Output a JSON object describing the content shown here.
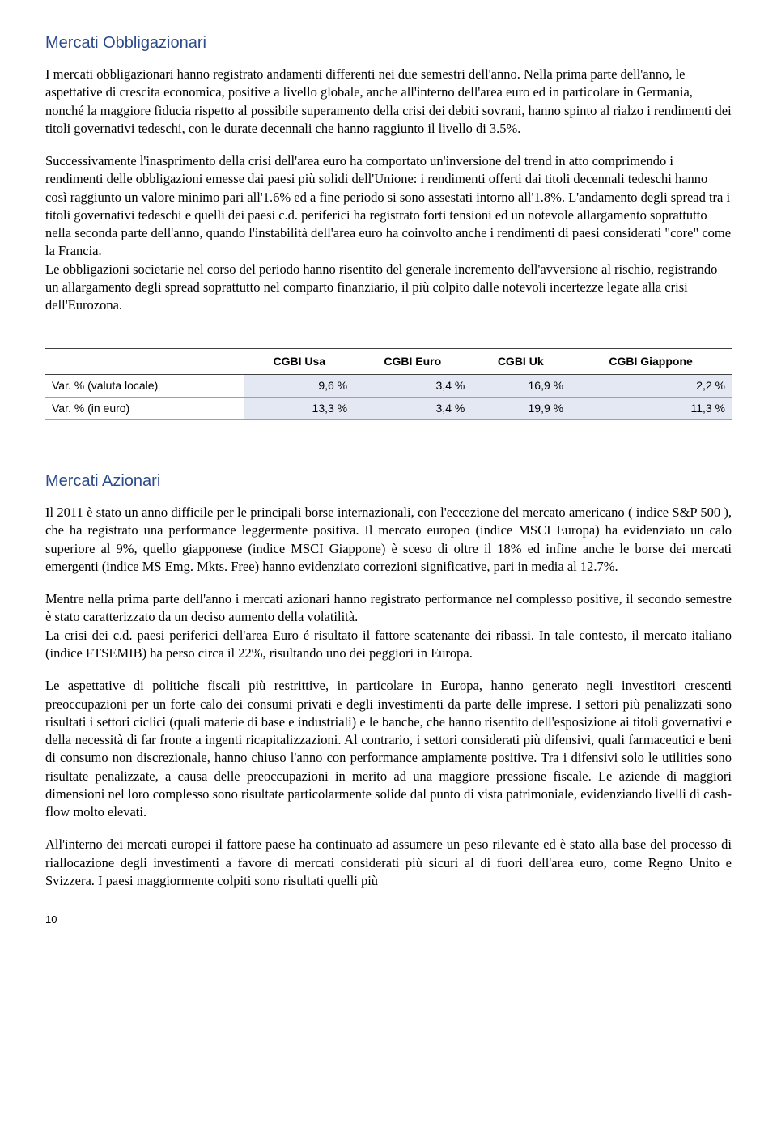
{
  "section1": {
    "heading": "Mercati Obbligazionari",
    "p1": "I mercati obbligazionari hanno registrato andamenti differenti nei due semestri dell'anno. Nella prima parte dell'anno, le aspettative di crescita  economica, positive a livello globale, anche all'interno dell'area euro ed in particolare in Germania, nonché la maggiore fiducia rispetto al possibile superamento della crisi dei debiti sovrani, hanno spinto al rialzo i rendimenti dei titoli governativi tedeschi, con le durate decennali che hanno raggiunto il livello di 3.5%.",
    "p2a": "Successivamente l'inasprimento della crisi dell'area euro ha comportato un'inversione del trend in atto comprimendo i rendimenti delle obbligazioni emesse dai paesi più solidi dell'Unione: i rendimenti offerti dai titoli decennali tedeschi hanno così raggiunto un valore minimo pari all'1.6% ed a fine periodo si sono assestati intorno all'1.8%. L'andamento degli spread tra i titoli governativi tedeschi e quelli dei paesi c.d. periferici ha registrato forti tensioni ed un notevole allargamento soprattutto nella seconda parte dell'anno, quando l'instabilità dell'area euro ha coinvolto anche i rendimenti di paesi considerati \"core\" come la Francia.",
    "p2b": "Le obbligazioni societarie nel corso del periodo hanno risentito del generale incremento dell'avversione al rischio, registrando un allargamento degli spread soprattutto nel comparto finanziario, il più colpito dalle notevoli incertezze legate alla crisi dell'Eurozona."
  },
  "table1": {
    "headers": [
      "",
      "CGBI Usa",
      "CGBI Euro",
      "CGBI Uk",
      "CGBI Giappone"
    ],
    "rows": [
      [
        "Var. % (valuta locale)",
        "9,6 %",
        "3,4 %",
        "16,9 %",
        "2,2 %"
      ],
      [
        "Var. %  (in euro)",
        "13,3 %",
        "3,4 %",
        "19,9 %",
        "11,3 %"
      ]
    ]
  },
  "section2": {
    "heading": "Mercati Azionari",
    "p1": "Il 2011 è stato un anno difficile per le principali borse internazionali, con l'eccezione del mercato americano ( indice S&P 500 ), che ha registrato una performance leggermente positiva. Il mercato europeo (indice MSCI Europa) ha evidenziato un calo superiore al 9%, quello giapponese (indice MSCI Giappone) è sceso di oltre il 18% ed infine anche le borse dei mercati emergenti (indice MS Emg. Mkts. Free) hanno evidenziato correzioni significative, pari in media al 12.7%.",
    "p2a": "Mentre nella prima parte dell'anno i mercati azionari hanno registrato performance nel complesso positive, il secondo semestre è stato caratterizzato da un deciso aumento della volatilità.",
    "p2b": "La crisi dei c.d. paesi periferici dell'area Euro é risultato il fattore scatenante dei ribassi. In tale contesto, il mercato italiano (indice FTSEMIB) ha perso circa il 22%, risultando uno dei peggiori in Europa.",
    "p3": "Le aspettative di politiche fiscali più restrittive, in particolare in Europa, hanno generato negli investitori crescenti preoccupazioni per un forte calo dei consumi privati e degli investimenti da parte delle imprese. I settori più penalizzati sono risultati i settori ciclici (quali materie di base e industriali) e le banche, che hanno risentito dell'esposizione ai titoli governativi e della necessità di far fronte a ingenti ricapitalizzazioni. Al contrario, i settori considerati più difensivi, quali farmaceutici e beni di consumo non discrezionale, hanno chiuso l'anno con performance ampiamente positive. Tra i difensivi solo le utilities sono risultate penalizzate, a causa delle preoccupazioni in merito ad una maggiore pressione fiscale. Le aziende di maggiori dimensioni nel loro complesso sono risultate particolarmente solide dal punto di vista patrimoniale, evidenziando livelli di cash-flow molto elevati.",
    "p4": "All'interno dei mercati europei il fattore paese ha continuato ad assumere un peso rilevante ed è stato alla base del processo di riallocazione degli investimenti a favore di mercati considerati più sicuri al di fuori dell'area euro, come Regno Unito e Svizzera. I paesi maggiormente colpiti sono risultati quelli più"
  },
  "pageNumber": "10"
}
